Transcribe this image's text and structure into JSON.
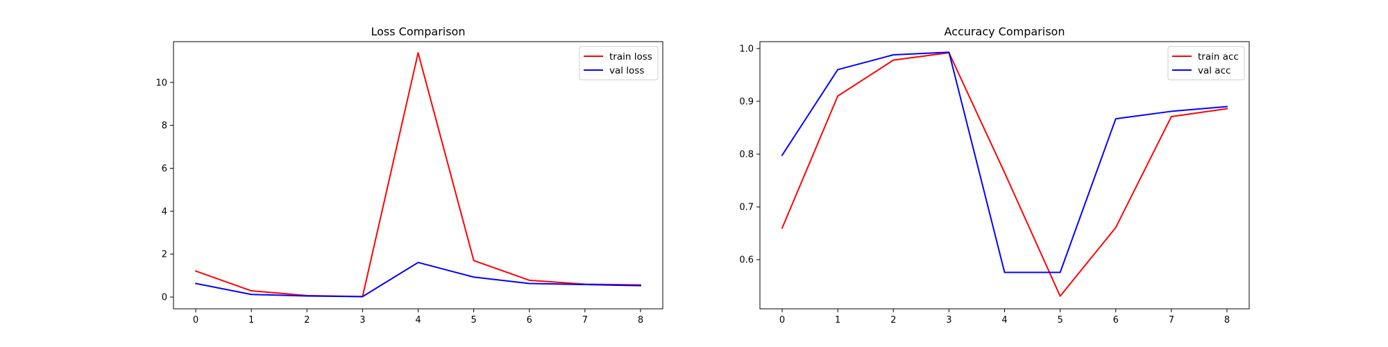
{
  "chart_data": [
    {
      "type": "line",
      "title": "Loss Comparison",
      "xlabel": "",
      "ylabel": "",
      "x": [
        0,
        1,
        2,
        3,
        4,
        5,
        6,
        7,
        8
      ],
      "xlim": [
        -0.4,
        8.4
      ],
      "ylim": [
        -0.55,
        11.9
      ],
      "xticks": [
        0,
        1,
        2,
        3,
        4,
        5,
        6,
        7,
        8
      ],
      "yticks": [
        0,
        2,
        4,
        6,
        8,
        10
      ],
      "grid": false,
      "legend_position": "top-right",
      "series": [
        {
          "name": "train loss",
          "color": "#ff0000",
          "values": [
            1.21,
            0.29,
            0.07,
            0.02,
            11.38,
            1.7,
            0.78,
            0.6,
            0.56
          ]
        },
        {
          "name": "val loss",
          "color": "#0000ff",
          "values": [
            0.63,
            0.12,
            0.05,
            0.02,
            1.61,
            0.93,
            0.63,
            0.58,
            0.53
          ]
        }
      ]
    },
    {
      "type": "line",
      "title": "Accuracy Comparison",
      "xlabel": "",
      "ylabel": "",
      "x": [
        0,
        1,
        2,
        3,
        4,
        5,
        6,
        7,
        8
      ],
      "xlim": [
        -0.4,
        8.4
      ],
      "ylim": [
        0.507,
        1.013
      ],
      "xticks": [
        0,
        1,
        2,
        3,
        4,
        5,
        6,
        7,
        8
      ],
      "yticks": [
        0.6,
        0.7,
        0.8,
        0.9,
        1.0
      ],
      "grid": false,
      "legend_position": "top-right",
      "series": [
        {
          "name": "train acc",
          "color": "#ff0000",
          "values": [
            0.66,
            0.91,
            0.978,
            0.992,
            0.765,
            0.531,
            0.661,
            0.871,
            0.886
          ]
        },
        {
          "name": "val acc",
          "color": "#0000ff",
          "values": [
            0.798,
            0.96,
            0.988,
            0.993,
            0.576,
            0.576,
            0.867,
            0.881,
            0.89
          ]
        }
      ]
    }
  ]
}
